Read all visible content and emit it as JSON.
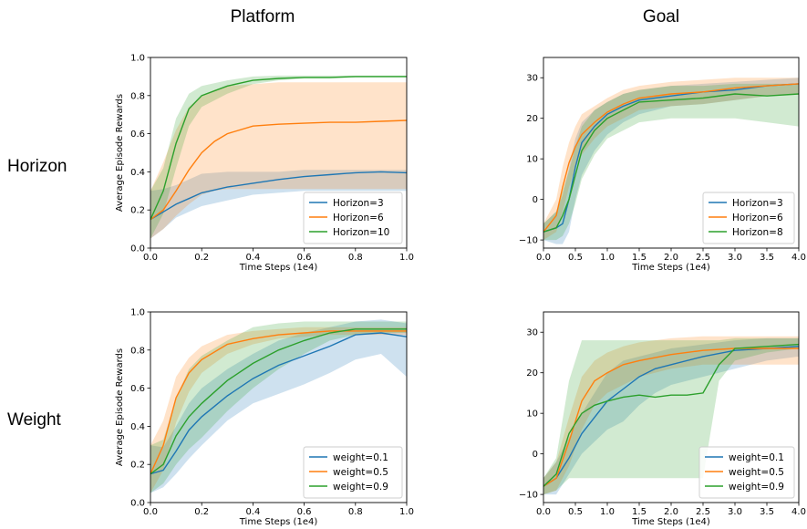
{
  "column_titles": [
    "Platform",
    "Goal"
  ],
  "row_titles": [
    "Horizon",
    "Weight"
  ],
  "colors": {
    "blue": "#1f77b4",
    "orange": "#ff7f0e",
    "green": "#2ca02c"
  },
  "chart_data": [
    {
      "type": "line",
      "xlabel": "Time Steps (1e4)",
      "ylabel": "Average Episode Rewards",
      "xlim": [
        0,
        1.0
      ],
      "ylim": [
        0,
        1.0
      ],
      "xticks": [
        "0.0",
        "0.2",
        "0.4",
        "0.6",
        "0.8",
        "1.0"
      ],
      "yticks": [
        "0.0",
        "0.2",
        "0.4",
        "0.6",
        "0.8",
        "1.0"
      ],
      "legend": "bottom-right",
      "series": [
        {
          "name": "Horizon=3",
          "color": "#1f77b4",
          "x": [
            0,
            0.05,
            0.1,
            0.15,
            0.2,
            0.3,
            0.4,
            0.5,
            0.6,
            0.7,
            0.8,
            0.9,
            1.0
          ],
          "y": [
            0.15,
            0.19,
            0.23,
            0.26,
            0.29,
            0.32,
            0.34,
            0.36,
            0.375,
            0.385,
            0.395,
            0.4,
            0.395
          ],
          "lower": [
            0.05,
            0.1,
            0.16,
            0.19,
            0.22,
            0.25,
            0.28,
            0.29,
            0.3,
            0.3,
            0.3,
            0.3,
            0.3
          ],
          "upper": [
            0.3,
            0.31,
            0.33,
            0.36,
            0.39,
            0.4,
            0.4,
            0.4,
            0.41,
            0.41,
            0.41,
            0.41,
            0.41
          ]
        },
        {
          "name": "Horizon=6",
          "color": "#ff7f0e",
          "x": [
            0,
            0.05,
            0.1,
            0.15,
            0.2,
            0.25,
            0.3,
            0.4,
            0.5,
            0.6,
            0.7,
            0.8,
            0.9,
            1.0
          ],
          "y": [
            0.15,
            0.2,
            0.3,
            0.41,
            0.5,
            0.56,
            0.6,
            0.64,
            0.65,
            0.655,
            0.66,
            0.66,
            0.665,
            0.67
          ],
          "lower": [
            0.05,
            0.1,
            0.17,
            0.23,
            0.28,
            0.3,
            0.31,
            0.31,
            0.31,
            0.31,
            0.31,
            0.31,
            0.31,
            0.31
          ],
          "upper": [
            0.3,
            0.45,
            0.62,
            0.74,
            0.8,
            0.83,
            0.85,
            0.86,
            0.87,
            0.87,
            0.87,
            0.87,
            0.87,
            0.87
          ]
        },
        {
          "name": "Horizon=10",
          "color": "#2ca02c",
          "x": [
            0,
            0.05,
            0.1,
            0.15,
            0.2,
            0.3,
            0.4,
            0.5,
            0.6,
            0.7,
            0.8,
            0.9,
            1.0
          ],
          "y": [
            0.15,
            0.3,
            0.55,
            0.73,
            0.8,
            0.85,
            0.88,
            0.89,
            0.895,
            0.895,
            0.9,
            0.9,
            0.9
          ],
          "lower": [
            0.05,
            0.18,
            0.42,
            0.64,
            0.74,
            0.81,
            0.86,
            0.88,
            0.89,
            0.89,
            0.895,
            0.895,
            0.895
          ],
          "upper": [
            0.3,
            0.42,
            0.68,
            0.81,
            0.85,
            0.88,
            0.9,
            0.905,
            0.905,
            0.905,
            0.905,
            0.905,
            0.905
          ]
        }
      ]
    },
    {
      "type": "line",
      "xlabel": "Time Steps (1e4)",
      "ylabel": "",
      "xlim": [
        0,
        4.0
      ],
      "ylim": [
        -12,
        35
      ],
      "xticks": [
        "0.0",
        "0.5",
        "1.0",
        "1.5",
        "2.0",
        "2.5",
        "3.0",
        "3.5",
        "4.0"
      ],
      "yticks": [
        "−10",
        "0",
        "10",
        "20",
        "30"
      ],
      "ytick_values": [
        -10,
        0,
        10,
        20,
        30
      ],
      "legend": "bottom-right",
      "series": [
        {
          "name": "Horizon=3",
          "color": "#1f77b4",
          "x": [
            0,
            0.2,
            0.3,
            0.4,
            0.5,
            0.6,
            0.8,
            1.0,
            1.25,
            1.5,
            2.0,
            2.5,
            3.0,
            3.5,
            4.0
          ],
          "y": [
            -8,
            -7,
            -6,
            0,
            8,
            14,
            18,
            21,
            23,
            24.5,
            25.5,
            26.5,
            27,
            28,
            28.5
          ],
          "lower": [
            -10,
            -11,
            -11,
            -8,
            0,
            6,
            12,
            16,
            19,
            21,
            23,
            23.5,
            24.5,
            25.5,
            26
          ],
          "upper": [
            -6,
            -3,
            1,
            8,
            15,
            19,
            22,
            24,
            26,
            27,
            28,
            28.5,
            29,
            29.5,
            30
          ]
        },
        {
          "name": "Horizon=6",
          "color": "#ff7f0e",
          "x": [
            0,
            0.2,
            0.3,
            0.4,
            0.5,
            0.6,
            0.8,
            1.0,
            1.25,
            1.5,
            2.0,
            2.5,
            3.0,
            3.5,
            4.0
          ],
          "y": [
            -8,
            -4,
            3,
            9,
            13,
            16,
            19,
            21.5,
            23.5,
            25,
            26,
            26.5,
            27.5,
            28,
            28.5
          ],
          "lower": [
            -10,
            -8,
            -3,
            3,
            8,
            11,
            15,
            18,
            20,
            22,
            23,
            23.5,
            24.5,
            25.5,
            26
          ],
          "upper": [
            -6,
            0,
            8,
            14,
            18,
            21,
            23,
            25,
            27,
            28,
            29,
            29.5,
            30,
            30,
            30
          ]
        },
        {
          "name": "Horizon=8",
          "color": "#2ca02c",
          "x": [
            0,
            0.2,
            0.3,
            0.4,
            0.5,
            0.6,
            0.8,
            1.0,
            1.25,
            1.5,
            2.0,
            2.5,
            3.0,
            3.5,
            4.0
          ],
          "y": [
            -8,
            -7,
            -4,
            0,
            6,
            12,
            17,
            20,
            22,
            24,
            24.5,
            25,
            26,
            25.5,
            26
          ],
          "lower": [
            -10,
            -10,
            -9,
            -6,
            -1,
            5,
            11,
            15,
            17,
            19,
            20,
            20,
            20,
            19,
            18
          ],
          "upper": [
            -6,
            -3,
            2,
            7,
            13,
            18,
            22,
            24,
            26,
            27,
            28,
            28,
            28.5,
            28.5,
            28.5
          ]
        }
      ]
    },
    {
      "type": "line",
      "xlabel": "Time Steps (1e4)",
      "ylabel": "Average Episode Rewards",
      "xlim": [
        0,
        1.0
      ],
      "ylim": [
        0,
        1.0
      ],
      "xticks": [
        "0.0",
        "0.2",
        "0.4",
        "0.6",
        "0.8",
        "1.0"
      ],
      "yticks": [
        "0.0",
        "0.2",
        "0.4",
        "0.6",
        "0.8",
        "1.0"
      ],
      "legend": "bottom-right",
      "series": [
        {
          "name": "weight=0.1",
          "color": "#1f77b4",
          "x": [
            0,
            0.05,
            0.1,
            0.15,
            0.2,
            0.3,
            0.4,
            0.5,
            0.6,
            0.7,
            0.8,
            0.9,
            1.0
          ],
          "y": [
            0.15,
            0.17,
            0.27,
            0.38,
            0.45,
            0.56,
            0.65,
            0.72,
            0.77,
            0.82,
            0.88,
            0.89,
            0.87
          ],
          "lower": [
            0.05,
            0.08,
            0.15,
            0.23,
            0.3,
            0.43,
            0.52,
            0.57,
            0.62,
            0.68,
            0.75,
            0.78,
            0.66
          ],
          "upper": [
            0.3,
            0.29,
            0.4,
            0.52,
            0.6,
            0.7,
            0.78,
            0.85,
            0.89,
            0.92,
            0.95,
            0.96,
            0.94
          ]
        },
        {
          "name": "weight=0.5",
          "color": "#ff7f0e",
          "x": [
            0,
            0.05,
            0.1,
            0.15,
            0.2,
            0.3,
            0.4,
            0.5,
            0.6,
            0.7,
            0.8,
            0.9,
            1.0
          ],
          "y": [
            0.15,
            0.3,
            0.55,
            0.68,
            0.75,
            0.83,
            0.86,
            0.88,
            0.89,
            0.9,
            0.9,
            0.9,
            0.9
          ],
          "lower": [
            0.05,
            0.17,
            0.42,
            0.58,
            0.68,
            0.78,
            0.83,
            0.86,
            0.87,
            0.88,
            0.88,
            0.88,
            0.88
          ],
          "upper": [
            0.3,
            0.43,
            0.66,
            0.76,
            0.82,
            0.88,
            0.9,
            0.91,
            0.92,
            0.92,
            0.92,
            0.92,
            0.92
          ]
        },
        {
          "name": "weight=0.9",
          "color": "#2ca02c",
          "x": [
            0,
            0.05,
            0.1,
            0.15,
            0.2,
            0.3,
            0.4,
            0.5,
            0.6,
            0.7,
            0.8,
            0.9,
            1.0
          ],
          "y": [
            0.15,
            0.2,
            0.35,
            0.45,
            0.52,
            0.64,
            0.73,
            0.8,
            0.85,
            0.89,
            0.91,
            0.91,
            0.91
          ],
          "lower": [
            0.05,
            0.1,
            0.2,
            0.28,
            0.34,
            0.48,
            0.6,
            0.7,
            0.78,
            0.85,
            0.88,
            0.89,
            0.89
          ],
          "upper": [
            0.3,
            0.33,
            0.55,
            0.7,
            0.77,
            0.85,
            0.92,
            0.94,
            0.95,
            0.95,
            0.95,
            0.95,
            0.95
          ]
        }
      ]
    },
    {
      "type": "line",
      "xlabel": "Time Steps (1e4)",
      "ylabel": "",
      "xlim": [
        0,
        4.0
      ],
      "ylim": [
        -12,
        35
      ],
      "xticks": [
        "0.0",
        "0.5",
        "1.0",
        "1.5",
        "2.0",
        "2.5",
        "3.0",
        "3.5",
        "4.0"
      ],
      "yticks": [
        "−10",
        "0",
        "10",
        "20",
        "30"
      ],
      "ytick_values": [
        -10,
        0,
        10,
        20,
        30
      ],
      "legend": "bottom-right",
      "series": [
        {
          "name": "weight=0.1",
          "color": "#1f77b4",
          "x": [
            0,
            0.2,
            0.4,
            0.6,
            0.8,
            1.0,
            1.25,
            1.5,
            1.75,
            2.0,
            2.5,
            3.0,
            3.5,
            4.0
          ],
          "y": [
            -8,
            -6,
            -1,
            5,
            9,
            13,
            16,
            19,
            21,
            22,
            24,
            25.5,
            26,
            26.5
          ],
          "lower": [
            -10,
            -10,
            -5,
            0,
            3,
            6,
            8,
            12,
            15,
            17,
            19,
            21,
            23,
            24
          ],
          "upper": [
            -6,
            -2,
            4,
            10,
            15,
            20,
            23,
            24,
            25,
            26,
            27,
            28,
            28.5,
            28.5
          ]
        },
        {
          "name": "weight=0.5",
          "color": "#ff7f0e",
          "x": [
            0,
            0.2,
            0.4,
            0.6,
            0.8,
            1.0,
            1.25,
            1.5,
            2.0,
            2.5,
            3.0,
            3.5,
            4.0
          ],
          "y": [
            -8,
            -6,
            3,
            13,
            18,
            20,
            22,
            23,
            24.5,
            25.5,
            26,
            26,
            26
          ],
          "lower": [
            -10,
            -9,
            -3,
            6,
            12,
            15,
            17,
            19,
            21,
            22,
            22,
            22,
            22
          ],
          "upper": [
            -6,
            -2,
            9,
            19,
            23,
            25,
            26.5,
            27.5,
            28.5,
            29,
            29,
            29,
            29
          ]
        },
        {
          "name": "weight=0.9",
          "color": "#2ca02c",
          "x": [
            0,
            0.2,
            0.4,
            0.6,
            0.8,
            1.0,
            1.25,
            1.5,
            1.75,
            2.0,
            2.25,
            2.5,
            2.75,
            3.0,
            3.5,
            4.0
          ],
          "y": [
            -8,
            -5,
            5,
            10,
            12,
            13,
            14,
            14.5,
            14,
            14.5,
            14.5,
            15,
            22,
            26,
            26.5,
            27
          ],
          "lower": [
            -10,
            -9,
            -6,
            -6,
            -6,
            -6,
            -6,
            -6,
            -6,
            -6,
            -6,
            -6,
            18,
            23,
            25,
            26
          ],
          "upper": [
            -6,
            -1,
            18,
            28,
            28,
            28,
            28,
            28,
            28,
            28,
            28,
            28,
            28,
            28.5,
            28.5,
            28.5
          ]
        }
      ]
    }
  ]
}
